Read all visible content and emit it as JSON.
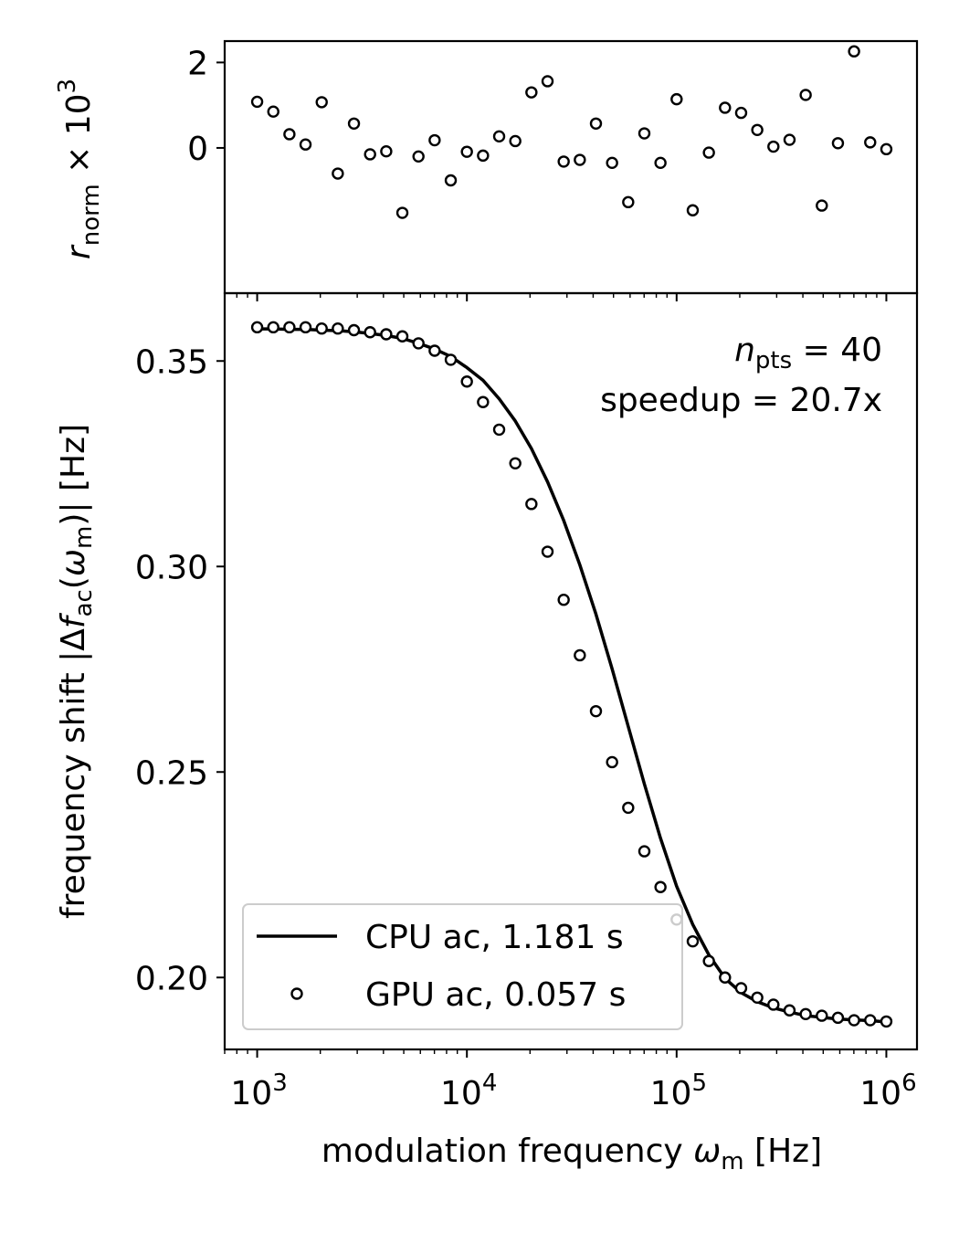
{
  "chart_data": [
    {
      "type": "scatter",
      "panel": "residuals",
      "ylabel": {
        "main": "r",
        "sub": "norm",
        "suffix": " × 10",
        "sup": "3"
      },
      "xscale": "log",
      "xlim": [
        700,
        1400000
      ],
      "ylim": [
        -3.4,
        2.5
      ],
      "yticks": [
        {
          "value": 2,
          "label": "2"
        },
        {
          "value": 0,
          "label": "0"
        }
      ],
      "x": [
        1000,
        1194,
        1425,
        1701,
        2031,
        2424,
        2894,
        3455,
        4125,
        4924,
        5878,
        7017,
        8377,
        10000,
        11938,
        14251,
        17013,
        20310,
        24245,
        28943,
        34551,
        41246,
        49239,
        58780,
        70170,
        83768,
        100000,
        119378,
        142510,
        170125,
        203092,
        242446,
        289427,
        345511,
        412463,
        492388,
        587802,
        701704,
        837678,
        1000000
      ],
      "y": [
        1.08,
        0.85,
        0.32,
        0.08,
        1.07,
        -0.6,
        0.57,
        -0.15,
        -0.08,
        -1.52,
        -0.2,
        0.18,
        -0.76,
        -0.09,
        -0.18,
        0.27,
        0.16,
        1.3,
        1.56,
        -0.32,
        -0.28,
        0.57,
        -0.35,
        -1.27,
        0.34,
        -0.35,
        1.14,
        -1.46,
        -0.11,
        0.94,
        0.82,
        0.42,
        0.03,
        0.19,
        1.24,
        -1.35,
        0.11,
        2.26,
        0.13,
        -0.03
      ]
    },
    {
      "type": "line",
      "panel": "main",
      "xlabel": {
        "prefix": "modulation frequency ",
        "sym": "ω",
        "sub": "m",
        "suffix": " [Hz]"
      },
      "ylabel": {
        "prefix": "frequency shift |Δ",
        "sym": "f",
        "sub": "ac",
        "mid": "(",
        "sym2": "ω",
        "sub2": "m",
        "suffix": ")| [Hz]"
      },
      "xscale": "log",
      "xlim": [
        700,
        1400000
      ],
      "ylim": [
        0.1825,
        0.3665
      ],
      "yticks": [
        {
          "value": 0.35,
          "label": "0.35"
        },
        {
          "value": 0.3,
          "label": "0.30"
        },
        {
          "value": 0.25,
          "label": "0.25"
        },
        {
          "value": 0.2,
          "label": "0.20"
        }
      ],
      "xticks": [
        {
          "value": 1000,
          "base": "10",
          "exp": "3"
        },
        {
          "value": 10000,
          "base": "10",
          "exp": "4"
        },
        {
          "value": 100000,
          "base": "10",
          "exp": "5"
        },
        {
          "value": 1000000,
          "base": "10",
          "exp": "6"
        }
      ],
      "annotation": {
        "npts_sym": "n",
        "npts_sub": "pts",
        "npts_value": " = 40",
        "speedup": "speedup = 20.7x"
      },
      "legend": {
        "position": "lower-left"
      },
      "series": [
        {
          "name": "CPU ac, 1.181 s",
          "style": "line",
          "color": "#000000",
          "x": [
            1000,
            1194,
            1425,
            1701,
            2031,
            2424,
            2894,
            3455,
            4125,
            4924,
            5878,
            7017,
            8377,
            10000,
            11938,
            14251,
            17013,
            20310,
            24245,
            28943,
            34551,
            41246,
            49239,
            58780,
            70170,
            83768,
            100000,
            119378,
            142510,
            170125,
            203092,
            242446,
            289427,
            345511,
            412463,
            492388,
            587802,
            701704,
            837678,
            1000000
          ],
          "y": [
            0.3578,
            0.3578,
            0.3577,
            0.3577,
            0.3575,
            0.3574,
            0.3571,
            0.3567,
            0.3562,
            0.3555,
            0.3543,
            0.3529,
            0.3511,
            0.3484,
            0.3453,
            0.3408,
            0.3354,
            0.3287,
            0.3206,
            0.3112,
            0.3004,
            0.2884,
            0.2751,
            0.2611,
            0.2471,
            0.2339,
            0.2222,
            0.2129,
            0.2055,
            0.1998,
            0.1963,
            0.1941,
            0.1926,
            0.1916,
            0.1907,
            0.1903,
            0.1899,
            0.1897,
            0.1895,
            0.1892
          ]
        },
        {
          "name": "GPU ac, 0.057 s",
          "style": "markers",
          "color": "#000000",
          "x": [
            1000,
            1194,
            1425,
            1701,
            2031,
            2424,
            2894,
            3455,
            4125,
            4924,
            5878,
            7017,
            8377,
            10000,
            11938,
            14251,
            17013,
            20310,
            24245,
            28943,
            34551,
            41246,
            49239,
            58780,
            70170,
            83768,
            100000,
            119378,
            142510,
            170125,
            203092,
            242446,
            289427,
            345511,
            412463,
            492388,
            587802,
            701704,
            837678,
            1000000
          ],
          "y": [
            0.3582,
            0.3582,
            0.3582,
            0.3582,
            0.3579,
            0.3579,
            0.3575,
            0.357,
            0.3565,
            0.356,
            0.3543,
            0.3525,
            0.3503,
            0.345,
            0.34,
            0.3333,
            0.3251,
            0.3152,
            0.3036,
            0.2919,
            0.2784,
            0.2648,
            0.2524,
            0.2413,
            0.2307,
            0.222,
            0.2141,
            0.2088,
            0.204,
            0.2,
            0.1974,
            0.1951,
            0.1934,
            0.192,
            0.1911,
            0.1907,
            0.1902,
            0.1896,
            0.1896,
            0.1893
          ]
        }
      ]
    }
  ]
}
